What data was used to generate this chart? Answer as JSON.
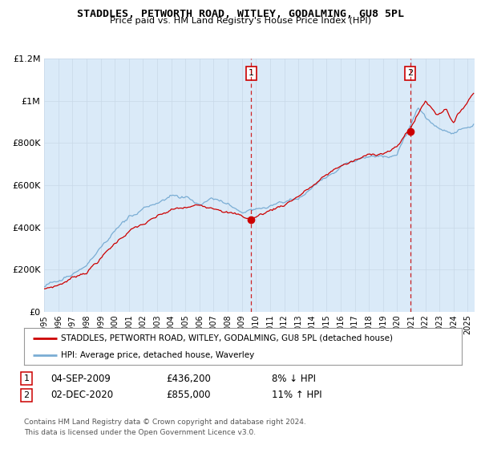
{
  "title": "STADDLES, PETWORTH ROAD, WITLEY, GODALMING, GU8 5PL",
  "subtitle": "Price paid vs. HM Land Registry's House Price Index (HPI)",
  "legend_line1": "STADDLES, PETWORTH ROAD, WITLEY, GODALMING, GU8 5PL (detached house)",
  "legend_line2": "HPI: Average price, detached house, Waverley",
  "annotation1": {
    "num": "1",
    "date": "04-SEP-2009",
    "price": "£436,200",
    "pct": "8% ↓ HPI",
    "year": 2009.67
  },
  "annotation2": {
    "num": "2",
    "date": "02-DEC-2020",
    "price": "£855,000",
    "pct": "11% ↑ HPI",
    "year": 2020.92
  },
  "copyright": "Contains HM Land Registry data © Crown copyright and database right 2024.\nThis data is licensed under the Open Government Licence v3.0.",
  "hpi_color": "#7aadd4",
  "price_color": "#cc0000",
  "shade_color": "#daeaf8",
  "background_color": "#daeaf8",
  "plot_bg": "#ffffff",
  "ylim": [
    0,
    1200000
  ],
  "yticks": [
    0,
    200000,
    400000,
    600000,
    800000,
    1000000,
    1200000
  ],
  "ytick_labels": [
    "£0",
    "£200K",
    "£400K",
    "£600K",
    "£800K",
    "£1M",
    "£1.2M"
  ],
  "x_start": 1995,
  "x_end": 2025.5,
  "xtick_years": [
    1995,
    1996,
    1997,
    1998,
    1999,
    2000,
    2001,
    2002,
    2003,
    2004,
    2005,
    2006,
    2007,
    2008,
    2009,
    2010,
    2011,
    2012,
    2013,
    2014,
    2015,
    2016,
    2017,
    2018,
    2019,
    2020,
    2021,
    2022,
    2023,
    2024,
    2025
  ]
}
